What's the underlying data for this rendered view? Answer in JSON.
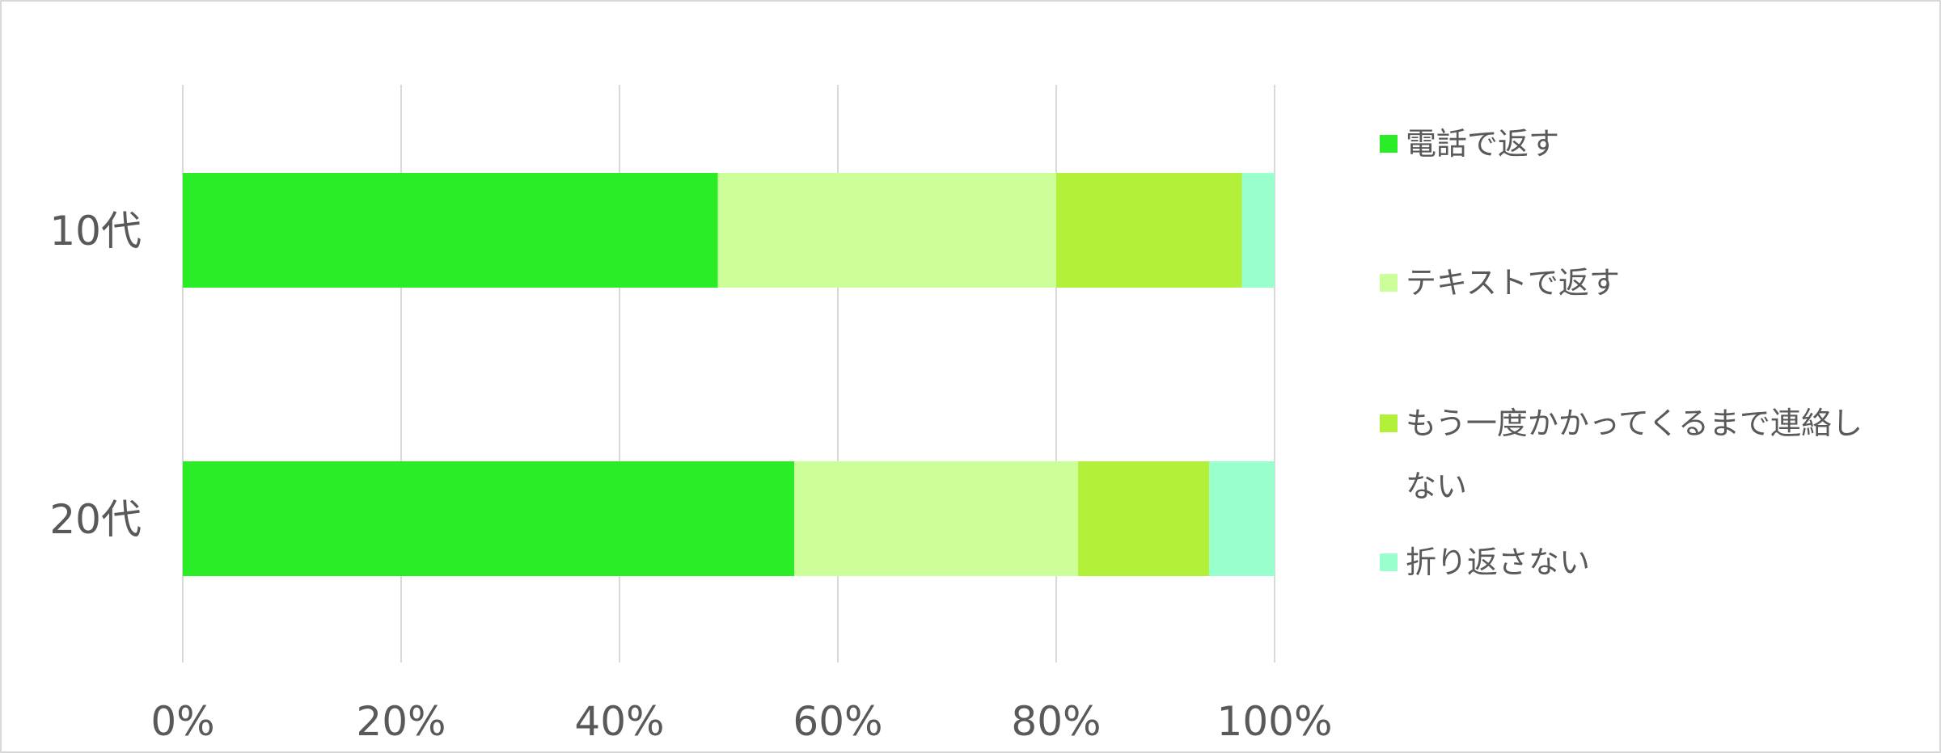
{
  "chart_data": {
    "type": "bar",
    "orientation": "horizontal",
    "stacked": "percent",
    "categories": [
      "10代",
      "20代"
    ],
    "series": [
      {
        "name": "電話で返す",
        "values": [
          49,
          56
        ],
        "color": "#2aed27"
      },
      {
        "name": "テキストで返す",
        "values": [
          31,
          26
        ],
        "color": "#ccff99"
      },
      {
        "name": "もう一度かかってくるまで連絡しない",
        "values": [
          17,
          12
        ],
        "color": "#b3f03a"
      },
      {
        "name": "折り返さない",
        "values": [
          3,
          6
        ],
        "color": "#99ffcc"
      }
    ],
    "xaxis": {
      "ticks": [
        "0%",
        "20%",
        "40%",
        "60%",
        "80%",
        "100%"
      ],
      "range": [
        0,
        100
      ]
    },
    "grid": true,
    "legend_position": "right",
    "colors": {
      "grid": "#d9d9d9",
      "text": "#595959",
      "border": "#d9d9d9"
    }
  }
}
